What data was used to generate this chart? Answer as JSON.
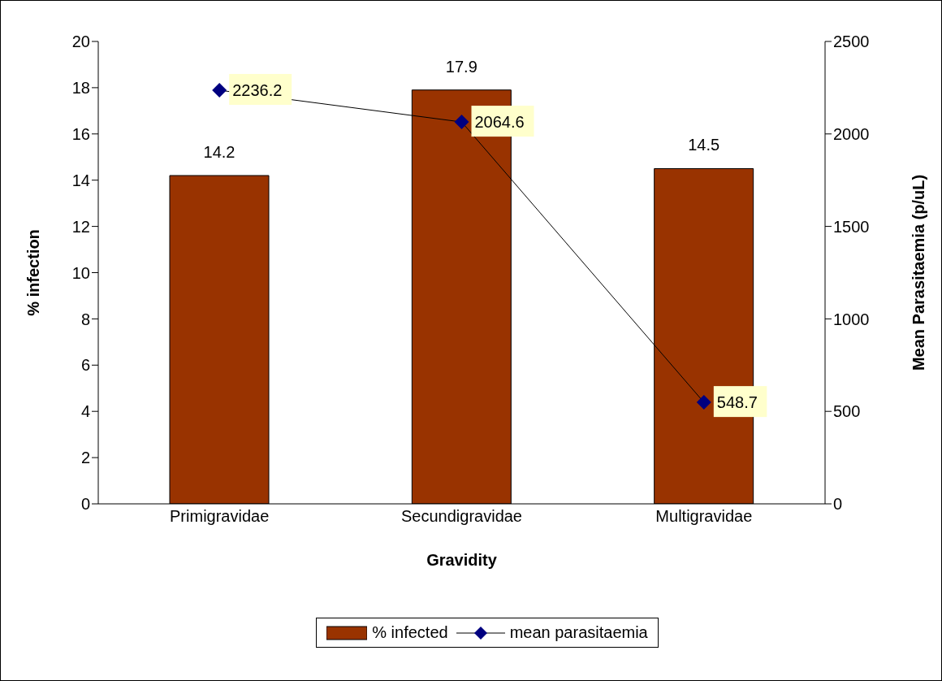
{
  "chart_data": {
    "type": "bar",
    "xlabel": "Gravidity",
    "ylabel": "% infection",
    "y2label": "Mean Parasitaemia (p/uL)",
    "categories": [
      "Primigravidae",
      "Secundigravidae",
      "Multigravidae"
    ],
    "series": [
      {
        "name": "% infected",
        "color": "#993300",
        "values": [
          14.2,
          17.9,
          14.5
        ]
      },
      {
        "name": "mean parasitaemia",
        "type": "line",
        "axis": "y2",
        "color": "#000080",
        "marker": "diamond",
        "values": [
          2236.2,
          2064.6,
          548.7
        ]
      }
    ],
    "ylim": [
      0,
      20
    ],
    "yticks": [
      0,
      2,
      4,
      6,
      8,
      10,
      12,
      14,
      16,
      18,
      20
    ],
    "y2lim": [
      0,
      2500
    ],
    "y2ticks": [
      0,
      500,
      1000,
      1500,
      2000,
      2500
    ],
    "data_labels": true,
    "legend": "bottom"
  }
}
